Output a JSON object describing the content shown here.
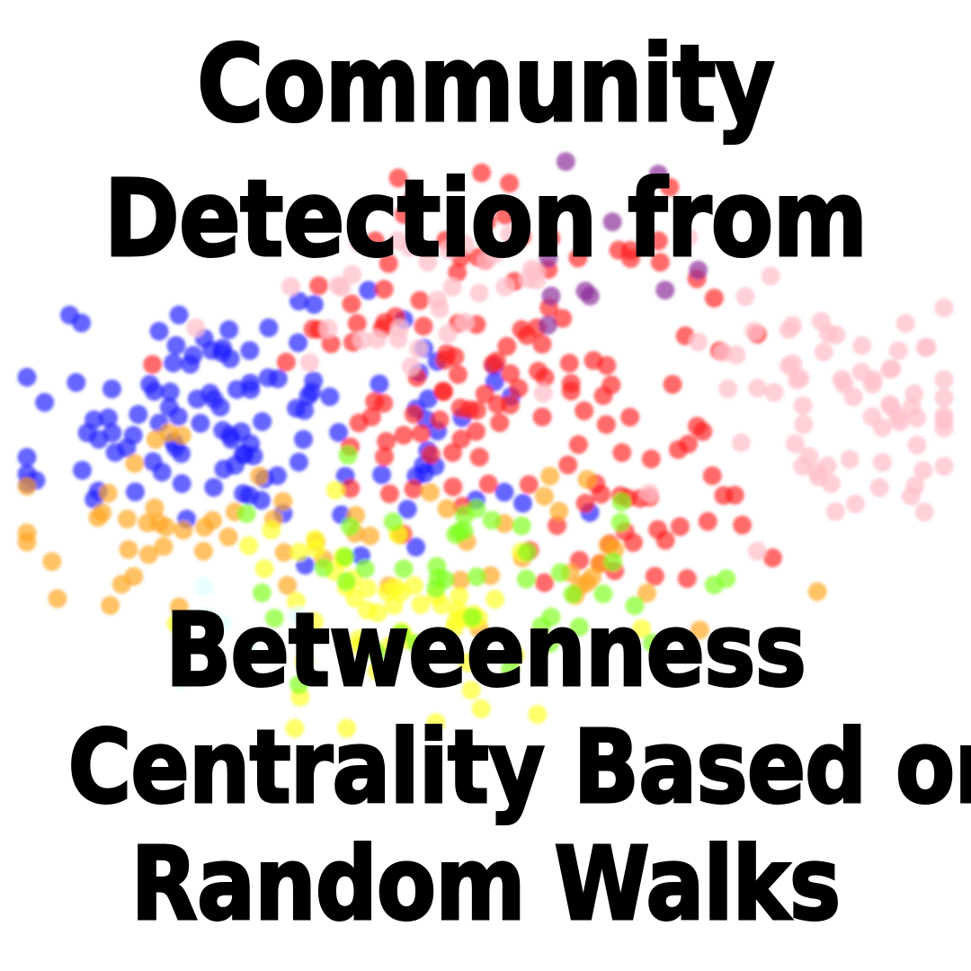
{
  "title": {
    "top_lines": [
      "Community",
      "Detection from"
    ],
    "bottom_lines": [
      "Betweenness",
      "Centrality Based on",
      "Random Walks"
    ]
  },
  "scatter": {
    "description_free": true,
    "colors": {
      "blue": "#1f1fff",
      "red": "#ff2020",
      "pink": "#ffc0cb",
      "orange": "#ffa51f",
      "yellow": "#ffff20",
      "green": "#7fff1f",
      "purple": "#8a2b9a",
      "cyan": "#e0ffff"
    }
  }
}
